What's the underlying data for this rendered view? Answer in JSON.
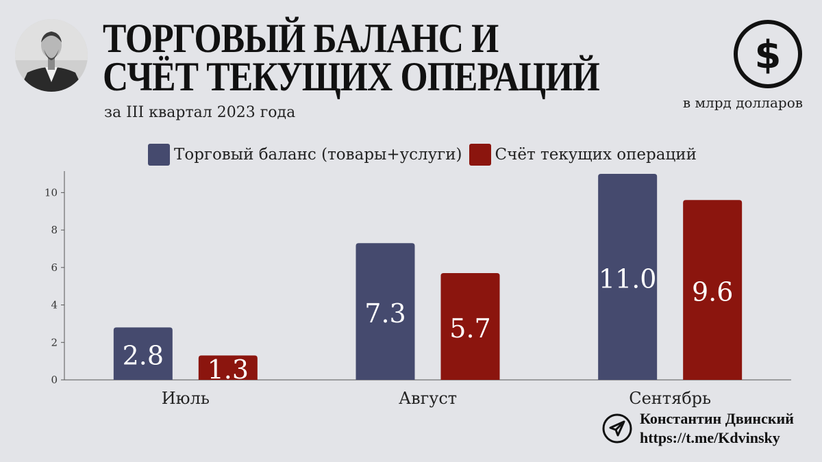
{
  "header": {
    "title_line1": "ТОРГОВЫЙ БАЛАНС И",
    "title_line2": "СЧЁТ ТЕКУЩИХ ОПЕРАЦИЙ",
    "subtitle": "за III квартал 2023 года",
    "units": "в млрд долларов"
  },
  "icons": {
    "top_right": "dollar-icon",
    "footer": "telegram-icon",
    "portrait": "author-portrait"
  },
  "colors": {
    "background": "#e3e4e8",
    "trade": "#454a6e",
    "current": "#8b150e"
  },
  "chart_data": {
    "type": "bar",
    "categories": [
      "Июль",
      "Август",
      "Сентябрь"
    ],
    "series": [
      {
        "name": "Торговый баланс (товары+услуги)",
        "values": [
          2.8,
          7.3,
          11.0
        ],
        "labels": [
          "2.8",
          "7.3",
          "11.0"
        ],
        "color": "#454a6e"
      },
      {
        "name": "Счёт текущих операций",
        "values": [
          1.3,
          5.7,
          9.6
        ],
        "labels": [
          "1.3",
          "5.7",
          "9.6"
        ],
        "color": "#8b150e"
      }
    ],
    "yticks": [
      "0",
      "2",
      "4",
      "6",
      "8",
      "10"
    ],
    "ylim": [
      0,
      11
    ],
    "grid": false,
    "legend": "top-center"
  },
  "footer": {
    "author": "Константин Двинский",
    "link": "https://t.me/Kdvinsky"
  }
}
